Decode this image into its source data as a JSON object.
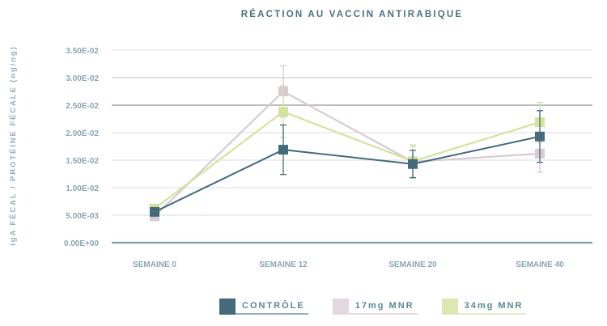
{
  "chart_data": {
    "type": "line",
    "title": "RÉACTION AU VACCIN ANTIRABIQUE",
    "xlabel": "",
    "ylabel": "IgA FÉCAL / PROTÉINE FÉCALE (ng/ng)",
    "categories": [
      "SEMAINE 0",
      "SEMAINE 12",
      "SEMAINE 20",
      "SEMAINE 40"
    ],
    "yticks": [
      "0.00E+00",
      "5.00E-03",
      "1.00E-02",
      "1.50E-02",
      "2.00E-02",
      "2.50E-02",
      "3.00E-02",
      "3.50E-02"
    ],
    "ylim": [
      0,
      0.035
    ],
    "grid": true,
    "legend_position": "bottom",
    "series": [
      {
        "name": "CONTRÔLE",
        "color": "#456b7a",
        "values": [
          0.0056,
          0.0169,
          0.0143,
          0.0193
        ],
        "error": [
          0.0005,
          0.0045,
          0.0025,
          0.0047
        ]
      },
      {
        "name": "17mg MNR",
        "color": "#d9cad6",
        "values": [
          0.0048,
          0.0275,
          0.0147,
          0.0162
        ],
        "error": [
          0.0005,
          0.0047,
          0.0028,
          0.0034
        ]
      },
      {
        "name": "34mg MNR",
        "color": "#d4e39c",
        "values": [
          0.0062,
          0.0238,
          0.0148,
          0.0219
        ],
        "error": [
          0.0005,
          0.0047,
          0.003,
          0.0036
        ]
      }
    ]
  }
}
